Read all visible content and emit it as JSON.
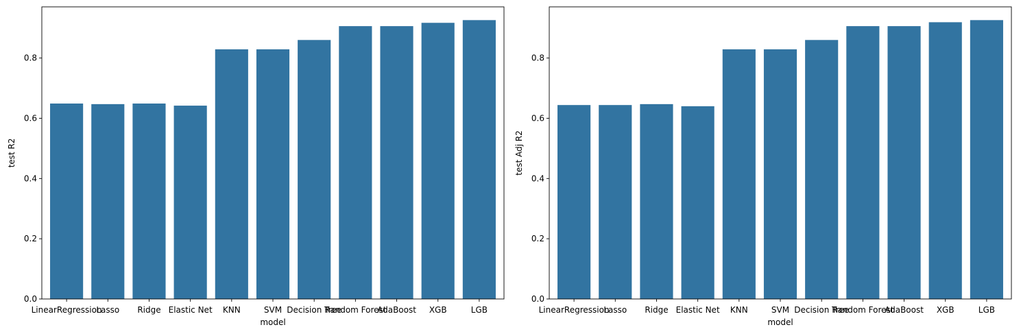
{
  "chart_data": [
    {
      "type": "bar",
      "categories": [
        "LinearRegression",
        "Lasso",
        "Ridge",
        "Elastic Net",
        "KNN",
        "SVM",
        "Decision Tree",
        "Random Forest",
        "AdaBoost",
        "XGB",
        "LGB"
      ],
      "values": [
        0.649,
        0.647,
        0.649,
        0.642,
        0.829,
        0.829,
        0.86,
        0.906,
        0.906,
        0.917,
        0.926
      ],
      "xlabel": "model",
      "ylabel": "test R2",
      "ylim": [
        0,
        0.97
      ],
      "yticks": [
        0.0,
        0.2,
        0.4,
        0.6,
        0.8
      ],
      "ytick_labels": [
        "0.0",
        "0.2",
        "0.4",
        "0.6",
        "0.8"
      ],
      "bar_color": "#3274a1",
      "grid": false
    },
    {
      "type": "bar",
      "categories": [
        "LinearRegression",
        "Lasso",
        "Ridge",
        "Elastic Net",
        "KNN",
        "SVM",
        "Decision Tree",
        "Random Forest",
        "AdaBoost",
        "XGB",
        "LGB"
      ],
      "values": [
        0.644,
        0.644,
        0.647,
        0.64,
        0.829,
        0.829,
        0.86,
        0.906,
        0.906,
        0.919,
        0.926
      ],
      "xlabel": "model",
      "ylabel": "test Adj R2",
      "ylim": [
        0,
        0.97
      ],
      "yticks": [
        0.0,
        0.2,
        0.4,
        0.6,
        0.8
      ],
      "ytick_labels": [
        "0.0",
        "0.2",
        "0.4",
        "0.6",
        "0.8"
      ],
      "bar_color": "#3274a1",
      "grid": false
    }
  ]
}
